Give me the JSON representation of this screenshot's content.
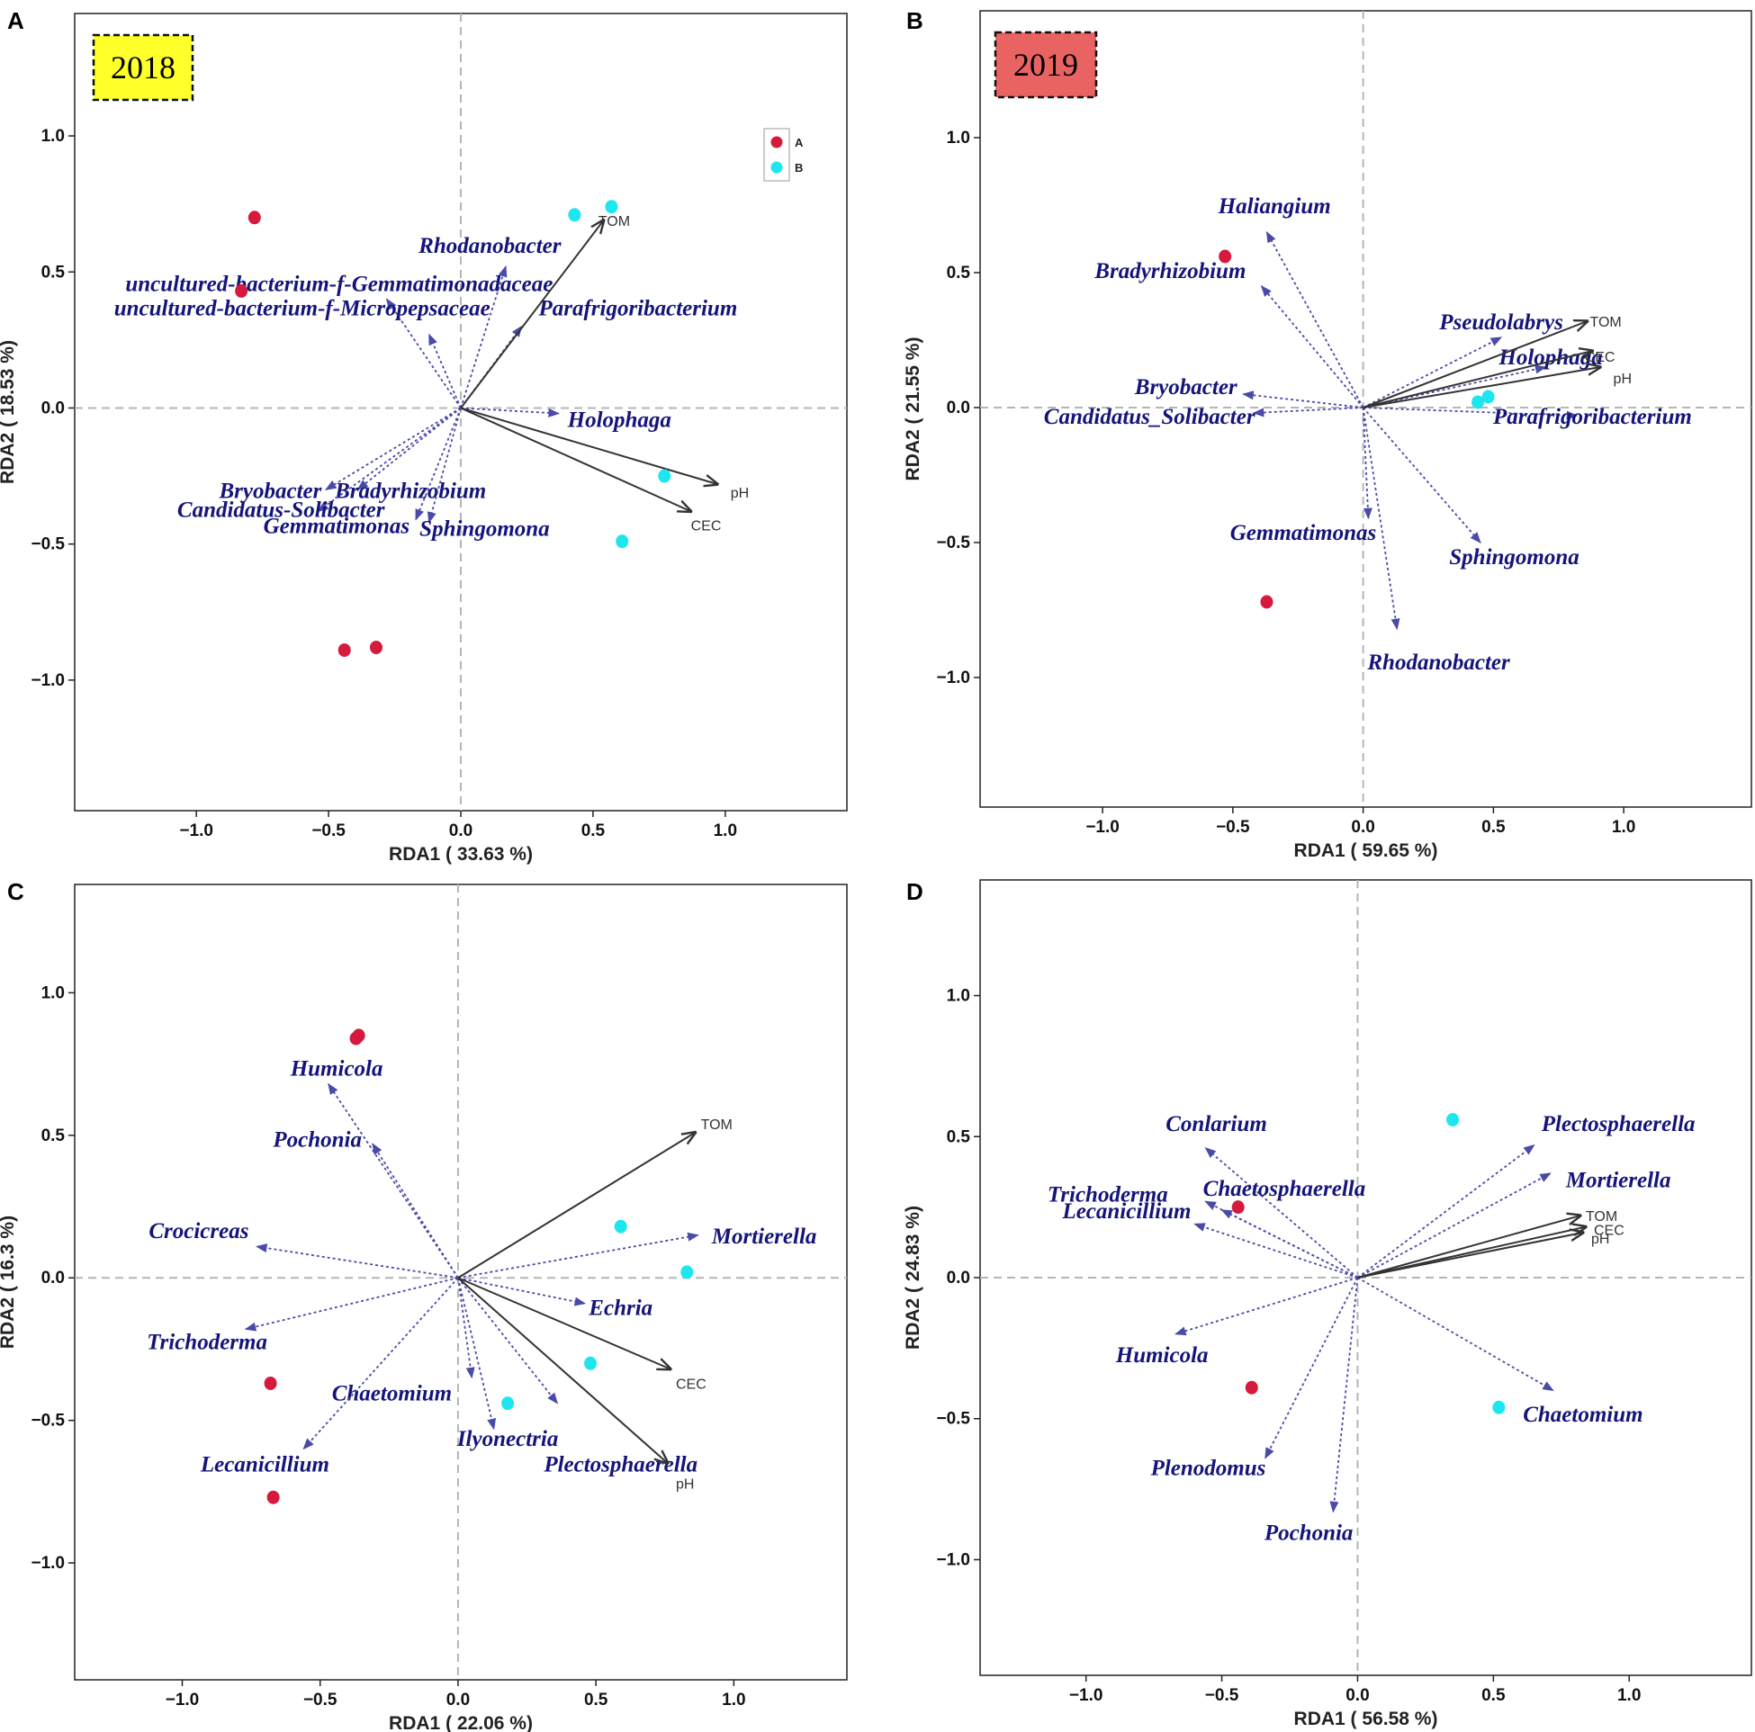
{
  "colors": {
    "group_a": "#d51a3d",
    "group_b": "#1ee6ef",
    "genus_arrow": "#4a4aa8",
    "genus_text": "#14147a",
    "env_arrow": "#333333",
    "year_2018_bg": "#ffff2a",
    "year_2019_bg": "#e96363"
  },
  "legend": {
    "items": [
      {
        "label": "A",
        "color": "#d51a3d"
      },
      {
        "label": "B",
        "color": "#1ee6ef"
      }
    ]
  },
  "chart_data": [
    {
      "type": "scatter",
      "panel": "A",
      "title": "2018",
      "xlabel": "RDA1 ( 33.63 %)",
      "ylabel": "RDA2 ( 18.53 %)",
      "xlim": [
        -1.46,
        1.46
      ],
      "ylim": [
        -1.48,
        1.45
      ],
      "xticks": [
        -1.0,
        -0.5,
        0.0,
        0.5,
        1.0
      ],
      "yticks": [
        1.0,
        0.5,
        0.0,
        -0.5,
        -1.0
      ],
      "xtick_labels": [
        "−1.0",
        "−0.5",
        "0.0",
        "0.5",
        "1.0"
      ],
      "ytick_labels": [
        "1.0",
        "0.5",
        "0.0",
        "−0.5",
        "−1.0"
      ],
      "show_legend": true,
      "points": [
        {
          "group": "A",
          "x": -0.78,
          "y": 0.7
        },
        {
          "group": "A",
          "x": -0.83,
          "y": 0.43
        },
        {
          "group": "A",
          "x": -0.44,
          "y": -0.89
        },
        {
          "group": "A",
          "x": -0.32,
          "y": -0.88
        },
        {
          "group": "B",
          "x": 0.43,
          "y": 0.71
        },
        {
          "group": "B",
          "x": 0.57,
          "y": 0.74
        },
        {
          "group": "B",
          "x": 0.77,
          "y": -0.25
        },
        {
          "group": "B",
          "x": 0.61,
          "y": -0.49
        }
      ],
      "species": [
        {
          "name": "Rhodanobacter",
          "x": 0.17,
          "y": 0.52,
          "lx": 0.11,
          "ly": 0.57,
          "anchor": "middle"
        },
        {
          "name": "uncultured-bacterium-f-Gemmatimonadaceae",
          "x": -0.28,
          "y": 0.4,
          "lx": -0.46,
          "ly": 0.43,
          "anchor": "middle"
        },
        {
          "name": "uncultured-bacterium-f-Micropepsaceae",
          "x": -0.12,
          "y": 0.27,
          "lx": -0.6,
          "ly": 0.34,
          "anchor": "middle"
        },
        {
          "name": "Parafrigoribacterium",
          "x": 0.23,
          "y": 0.3,
          "lx": 0.67,
          "ly": 0.34,
          "anchor": "middle"
        },
        {
          "name": "Holophaga",
          "x": 0.37,
          "y": -0.02,
          "lx": 0.6,
          "ly": -0.07,
          "anchor": "middle"
        },
        {
          "name": "Bryobacter",
          "x": -0.51,
          "y": -0.3,
          "lx": -0.72,
          "ly": -0.33,
          "anchor": "middle"
        },
        {
          "name": "Bradyrhizobium",
          "x": -0.39,
          "y": -0.3,
          "lx": -0.19,
          "ly": -0.33,
          "anchor": "middle"
        },
        {
          "name": "Candidatus-Solibacter",
          "x": -0.54,
          "y": -0.38,
          "lx": -0.68,
          "ly": -0.4,
          "anchor": "middle"
        },
        {
          "name": "Gemmatimonas",
          "x": -0.17,
          "y": -0.41,
          "lx": -0.47,
          "ly": -0.46,
          "anchor": "middle"
        },
        {
          "name": "Sphingomona",
          "x": -0.12,
          "y": -0.42,
          "lx": 0.09,
          "ly": -0.47,
          "anchor": "middle"
        }
      ],
      "env": [
        {
          "name": "TOM",
          "x": 0.54,
          "y": 0.69,
          "lx": 0.52,
          "ly": 0.69
        },
        {
          "name": "pH",
          "x": 0.97,
          "y": -0.28,
          "lx": 1.02,
          "ly": -0.31
        },
        {
          "name": "CEC",
          "x": 0.87,
          "y": -0.38,
          "lx": 0.87,
          "ly": -0.43
        }
      ]
    },
    {
      "type": "scatter",
      "panel": "B",
      "title": "2019",
      "xlabel": "RDA1 ( 59.65 %)",
      "ylabel": "RDA2 ( 21.55 %)",
      "xlim": [
        -1.47,
        1.49
      ],
      "ylim": [
        -1.48,
        1.47
      ],
      "xticks": [
        -1.0,
        -0.5,
        0.0,
        0.5,
        1.0
      ],
      "yticks": [
        1.0,
        0.5,
        0.0,
        -0.5,
        -1.0
      ],
      "xtick_labels": [
        "−1.0",
        "−0.5",
        "0.0",
        "0.5",
        "1.0"
      ],
      "ytick_labels": [
        "1.0",
        "0.5",
        "0.0",
        "−0.5",
        "−1.0"
      ],
      "show_legend": false,
      "points": [
        {
          "group": "A",
          "x": -0.53,
          "y": 0.56
        },
        {
          "group": "A",
          "x": -0.37,
          "y": -0.72
        },
        {
          "group": "B",
          "x": 0.44,
          "y": 0.02
        },
        {
          "group": "B",
          "x": 0.48,
          "y": 0.04
        }
      ],
      "species": [
        {
          "name": "Haliangium",
          "x": -0.37,
          "y": 0.65,
          "lx": -0.34,
          "ly": 0.72,
          "anchor": "middle"
        },
        {
          "name": "Bradyrhizobium",
          "x": -0.39,
          "y": 0.45,
          "lx": -0.74,
          "ly": 0.48,
          "anchor": "middle"
        },
        {
          "name": "Pseudolabrys",
          "x": 0.53,
          "y": 0.26,
          "lx": 0.53,
          "ly": 0.29,
          "anchor": "middle"
        },
        {
          "name": "Holophaga",
          "x": 0.7,
          "y": 0.15,
          "lx": 0.72,
          "ly": 0.16,
          "anchor": "middle"
        },
        {
          "name": "Bryobacter",
          "x": -0.46,
          "y": 0.05,
          "lx": -0.68,
          "ly": 0.05,
          "anchor": "middle"
        },
        {
          "name": "Candidatus_Solibacter",
          "x": -0.42,
          "y": -0.02,
          "lx": -0.82,
          "ly": -0.06,
          "anchor": "middle"
        },
        {
          "name": "Parafrigoribacterium",
          "x": 0.82,
          "y": -0.03,
          "lx": 0.88,
          "ly": -0.06,
          "anchor": "middle"
        },
        {
          "name": "Gemmatimonas",
          "x": 0.02,
          "y": -0.41,
          "lx": -0.23,
          "ly": -0.49,
          "anchor": "middle"
        },
        {
          "name": "Sphingomona",
          "x": 0.45,
          "y": -0.5,
          "lx": 0.58,
          "ly": -0.58,
          "anchor": "middle"
        },
        {
          "name": "Rhodanobacter",
          "x": 0.13,
          "y": -0.82,
          "lx": 0.29,
          "ly": -0.97,
          "anchor": "middle"
        }
      ],
      "env": [
        {
          "name": "TOM",
          "x": 0.86,
          "y": 0.32,
          "lx": 0.87,
          "ly": 0.32
        },
        {
          "name": "CEC",
          "x": 0.88,
          "y": 0.21,
          "lx": 0.85,
          "ly": 0.19
        },
        {
          "name": "pH",
          "x": 0.91,
          "y": 0.15,
          "lx": 0.96,
          "ly": 0.11
        }
      ]
    },
    {
      "type": "scatter",
      "panel": "C",
      "title": "",
      "xlabel": "RDA1 ( 22.06 %)",
      "ylabel": "RDA2 ( 16.3 %)",
      "xlim": [
        -1.39,
        1.41
      ],
      "ylim": [
        -1.41,
        1.38
      ],
      "xticks": [
        -1.0,
        -0.5,
        0.0,
        0.5,
        1.0
      ],
      "yticks": [
        1.0,
        0.5,
        0.0,
        -0.5,
        -1.0
      ],
      "xtick_labels": [
        "−1.0",
        "−0.5",
        "0.0",
        "0.5",
        "1.0"
      ],
      "ytick_labels": [
        "1.0",
        "0.5",
        "0.0",
        "−0.5",
        "−1.0"
      ],
      "show_legend": false,
      "points": [
        {
          "group": "A",
          "x": -0.37,
          "y": 0.84
        },
        {
          "group": "A",
          "x": -0.36,
          "y": 0.85
        },
        {
          "group": "A",
          "x": -0.68,
          "y": -0.37
        },
        {
          "group": "A",
          "x": -0.67,
          "y": -0.77
        },
        {
          "group": "B",
          "x": 0.59,
          "y": 0.18
        },
        {
          "group": "B",
          "x": 0.83,
          "y": 0.02
        },
        {
          "group": "B",
          "x": 0.48,
          "y": -0.3
        },
        {
          "group": "B",
          "x": 0.18,
          "y": -0.44
        }
      ],
      "species": [
        {
          "name": "Humicola",
          "x": -0.47,
          "y": 0.68,
          "lx": -0.44,
          "ly": 0.71,
          "anchor": "middle"
        },
        {
          "name": "Pochonia",
          "x": -0.31,
          "y": 0.47,
          "lx": -0.51,
          "ly": 0.46,
          "anchor": "middle"
        },
        {
          "name": "Crocicreas",
          "x": -0.73,
          "y": 0.11,
          "lx": -0.94,
          "ly": 0.14,
          "anchor": "middle"
        },
        {
          "name": "Mortierella",
          "x": 0.87,
          "y": 0.15,
          "lx": 1.11,
          "ly": 0.12,
          "anchor": "middle"
        },
        {
          "name": "Echria",
          "x": 0.46,
          "y": -0.09,
          "lx": 0.59,
          "ly": -0.13,
          "anchor": "middle"
        },
        {
          "name": "Trichoderma",
          "x": -0.77,
          "y": -0.18,
          "lx": -0.91,
          "ly": -0.25,
          "anchor": "middle"
        },
        {
          "name": "Chaetomium",
          "x": 0.05,
          "y": -0.35,
          "lx": -0.24,
          "ly": -0.43,
          "anchor": "middle"
        },
        {
          "name": "Ilyonectria",
          "x": 0.13,
          "y": -0.53,
          "lx": 0.18,
          "ly": -0.59,
          "anchor": "middle"
        },
        {
          "name": "Plectosphaerella",
          "x": 0.36,
          "y": -0.44,
          "lx": 0.59,
          "ly": -0.68,
          "anchor": "middle"
        },
        {
          "name": "Lecanicillium",
          "x": -0.56,
          "y": -0.6,
          "lx": -0.7,
          "ly": -0.68,
          "anchor": "middle"
        }
      ],
      "env": [
        {
          "name": "TOM",
          "x": 0.86,
          "y": 0.51,
          "lx": 0.88,
          "ly": 0.54
        },
        {
          "name": "CEC",
          "x": 0.77,
          "y": -0.32,
          "lx": 0.79,
          "ly": -0.37
        },
        {
          "name": "pH",
          "x": 0.76,
          "y": -0.65,
          "lx": 0.79,
          "ly": -0.72
        }
      ]
    },
    {
      "type": "scatter",
      "panel": "D",
      "title": "",
      "xlabel": "RDA1 ( 56.58 %)",
      "ylabel": "RDA2 ( 24.83 %)",
      "xlim": [
        -1.39,
        1.45
      ],
      "ylim": [
        -1.41,
        1.41
      ],
      "xticks": [
        -1.0,
        -0.5,
        0.0,
        0.5,
        1.0
      ],
      "yticks": [
        1.0,
        0.5,
        0.0,
        -0.5,
        -1.0
      ],
      "xtick_labels": [
        "−1.0",
        "−0.5",
        "0.0",
        "0.5",
        "1.0"
      ],
      "ytick_labels": [
        "1.0",
        "0.5",
        "0.0",
        "−0.5",
        "−1.0"
      ],
      "show_legend": false,
      "points": [
        {
          "group": "A",
          "x": -0.44,
          "y": 0.25
        },
        {
          "group": "A",
          "x": -0.39,
          "y": -0.39
        },
        {
          "group": "B",
          "x": 0.35,
          "y": 0.56
        },
        {
          "group": "B",
          "x": 0.52,
          "y": -0.46
        }
      ],
      "species": [
        {
          "name": "Conlarium",
          "x": -0.56,
          "y": 0.46,
          "lx": -0.52,
          "ly": 0.52,
          "anchor": "middle"
        },
        {
          "name": "Plectosphaerella",
          "x": 0.65,
          "y": 0.47,
          "lx": 0.96,
          "ly": 0.52,
          "anchor": "middle"
        },
        {
          "name": "Mortierella",
          "x": 0.71,
          "y": 0.37,
          "lx": 0.96,
          "ly": 0.32,
          "anchor": "middle"
        },
        {
          "name": "Trichoderma",
          "x": -0.56,
          "y": 0.27,
          "lx": -0.92,
          "ly": 0.27,
          "anchor": "middle"
        },
        {
          "name": "Chaetosphaerella",
          "x": -0.5,
          "y": 0.24,
          "lx": -0.27,
          "ly": 0.29,
          "anchor": "middle"
        },
        {
          "name": "Lecanicillium",
          "x": -0.6,
          "y": 0.19,
          "lx": -0.85,
          "ly": 0.21,
          "anchor": "middle"
        },
        {
          "name": "Humicola",
          "x": -0.67,
          "y": -0.2,
          "lx": -0.72,
          "ly": -0.3,
          "anchor": "middle"
        },
        {
          "name": "Chaetomium",
          "x": 0.72,
          "y": -0.4,
          "lx": 0.83,
          "ly": -0.51,
          "anchor": "middle"
        },
        {
          "name": "Plenodomus",
          "x": -0.34,
          "y": -0.64,
          "lx": -0.55,
          "ly": -0.7,
          "anchor": "middle"
        },
        {
          "name": "Pochonia",
          "x": -0.09,
          "y": -0.83,
          "lx": -0.18,
          "ly": -0.93,
          "anchor": "middle"
        }
      ],
      "env": [
        {
          "name": "TOM",
          "x": 0.82,
          "y": 0.22,
          "lx": 0.84,
          "ly": 0.22
        },
        {
          "name": "CEC",
          "x": 0.84,
          "y": 0.18,
          "lx": 0.87,
          "ly": 0.17
        },
        {
          "name": "pH",
          "x": 0.83,
          "y": 0.16,
          "lx": 0.86,
          "ly": 0.14
        }
      ]
    }
  ]
}
